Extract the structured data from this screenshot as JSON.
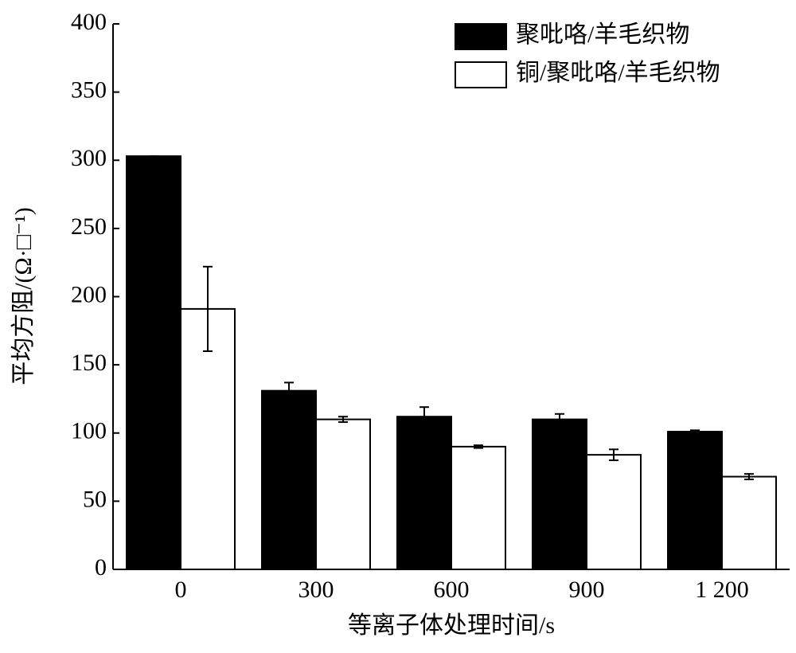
{
  "chart_data": {
    "type": "bar",
    "xlabel": "等离子体处理时间/s",
    "ylabel": "平均方阻/(Ω·□⁻¹)",
    "categories": [
      "0",
      "300",
      "600",
      "900",
      "1 200"
    ],
    "series": [
      {
        "name": "聚吡咯/羊毛织物",
        "color": "#000000",
        "values": [
          303,
          131,
          112,
          110,
          101
        ],
        "errors": [
          0,
          6,
          7,
          4,
          1
        ]
      },
      {
        "name": "铜/聚吡咯/羊毛织物",
        "color": "#ffffff",
        "values": [
          191,
          110,
          90,
          84,
          68
        ],
        "errors": [
          31,
          2,
          1,
          4,
          2
        ]
      }
    ],
    "ylim": [
      0,
      400
    ],
    "yticks": [
      0,
      50,
      100,
      150,
      200,
      250,
      300,
      350,
      400
    ],
    "legend": "upper right",
    "grid": false
  }
}
